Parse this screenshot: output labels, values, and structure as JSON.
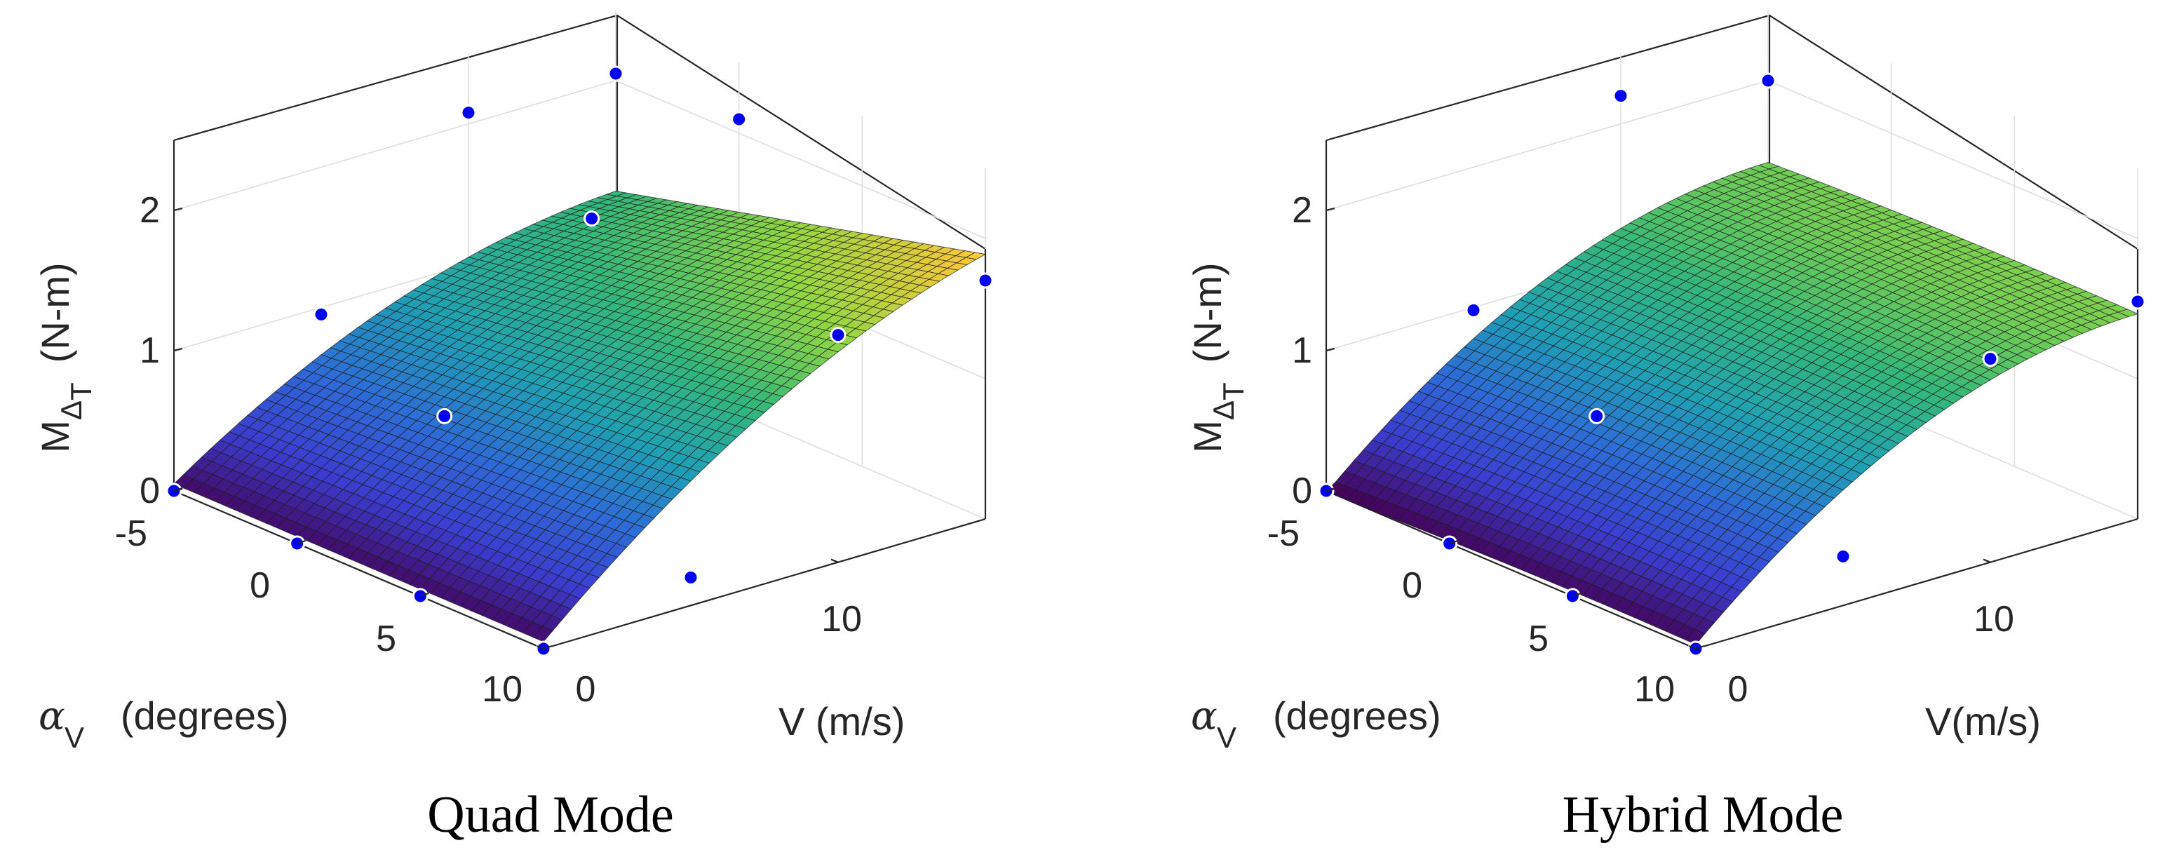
{
  "chart_data": [
    {
      "type": "surface3d",
      "title": "Quad Mode",
      "zlabel": "M",
      "zlabel_sub": "Δ",
      "zlabel_subsub": "T",
      "zlabel_unit": "(N-m)",
      "xlabel_symbol": "α",
      "xlabel_sub": "V",
      "xlabel_unit": "(degrees)",
      "ylabel": "V (m/s)",
      "alpha_range": [
        -5,
        10
      ],
      "v_range": [
        0,
        15
      ],
      "zlim": [
        0,
        2.5
      ],
      "alpha_ticks": [
        -5,
        0,
        5,
        10
      ],
      "v_ticks": [
        0,
        10
      ],
      "z_ticks": [
        0,
        1,
        2
      ],
      "grid": true,
      "colormap": [
        "#440154",
        "#3b3ccf",
        "#2e6ad7",
        "#1fa0b4",
        "#35b779",
        "#90d743",
        "#f6c83a",
        "#fde725"
      ],
      "surface_model": {
        "c0": 0.05,
        "cv": 0.16,
        "cvv": -0.0045,
        "ca": 0.0,
        "caa": 0.0,
        "cav": 0.003
      },
      "points": [
        {
          "alpha": -5,
          "v": 0,
          "z": 0.0
        },
        {
          "alpha": 0,
          "v": 0,
          "z": 0.0
        },
        {
          "alpha": 5,
          "v": 0,
          "z": 0.0
        },
        {
          "alpha": 10,
          "v": 0,
          "z": 0.0
        },
        {
          "alpha": -5,
          "v": 5,
          "z": 0.95
        },
        {
          "alpha": 0,
          "v": 5,
          "z": 0.6
        },
        {
          "alpha": 10,
          "v": 5,
          "z": 0.2
        },
        {
          "alpha": -5,
          "v": 10,
          "z": 2.08
        },
        {
          "alpha": 0,
          "v": 10,
          "z": 1.7
        },
        {
          "alpha": 10,
          "v": 10,
          "z": 1.62
        },
        {
          "alpha": -5,
          "v": 15,
          "z": 2.05
        },
        {
          "alpha": 0,
          "v": 15,
          "z": 2.1
        },
        {
          "alpha": 10,
          "v": 15,
          "z": 1.7
        }
      ]
    },
    {
      "type": "surface3d",
      "title": "Hybrid Mode",
      "zlabel": "M",
      "zlabel_sub": "Δ",
      "zlabel_subsub": "T",
      "zlabel_unit": "(N-m)",
      "xlabel_symbol": "α",
      "xlabel_sub": "V",
      "xlabel_unit": "(degrees)",
      "ylabel": "V(m/s)",
      "alpha_range": [
        -5,
        10
      ],
      "v_range": [
        0,
        15
      ],
      "zlim": [
        0,
        2.5
      ],
      "alpha_ticks": [
        -5,
        0,
        5,
        10
      ],
      "v_ticks": [
        0,
        10
      ],
      "z_ticks": [
        0,
        1,
        2
      ],
      "grid": true,
      "colormap": [
        "#440154",
        "#3b3ccf",
        "#2e6ad7",
        "#1fa0b4",
        "#35b779",
        "#90d743",
        "#f6c83a",
        "#fde725"
      ],
      "surface_model": {
        "c0": 0.02,
        "cv": 0.19,
        "cvv": -0.0063,
        "ca": 0.005,
        "caa": -0.0004,
        "cav": 0.0
      },
      "points": [
        {
          "alpha": -5,
          "v": 0,
          "z": 0.0
        },
        {
          "alpha": 0,
          "v": 0,
          "z": 0.0
        },
        {
          "alpha": 5,
          "v": 0,
          "z": 0.0
        },
        {
          "alpha": 10,
          "v": 0,
          "z": 0.0
        },
        {
          "alpha": -5,
          "v": 5,
          "z": 0.98
        },
        {
          "alpha": 0,
          "v": 5,
          "z": 0.6
        },
        {
          "alpha": 10,
          "v": 5,
          "z": 0.35
        },
        {
          "alpha": -5,
          "v": 10,
          "z": 2.2
        },
        {
          "alpha": 10,
          "v": 10,
          "z": 1.45
        },
        {
          "alpha": -5,
          "v": 15,
          "z": 2.0
        },
        {
          "alpha": 10,
          "v": 15,
          "z": 1.55
        }
      ]
    }
  ]
}
